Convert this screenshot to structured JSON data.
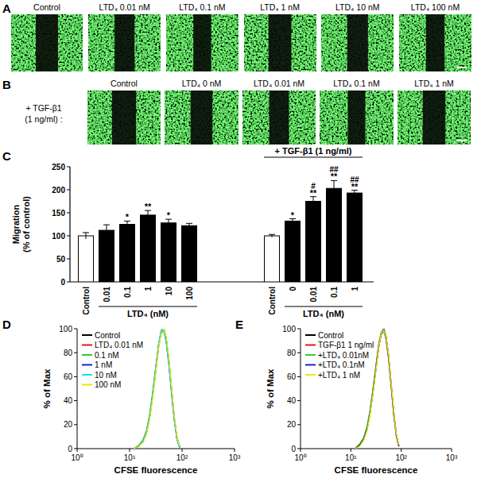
{
  "panel_labels": [
    "A",
    "B",
    "C",
    "D",
    "E"
  ],
  "image_rows": [
    {
      "titles": [
        "Control",
        "LTD₄ 0.01 nM",
        "LTD₄ 0.1 nM",
        "LTD₄ 1 nM",
        "LTD₄ 10 nM",
        "LTD₄ 100 nM"
      ]
    },
    {
      "side_label": [
        "+ TGF-β1",
        "(1 ng/ml) :"
      ],
      "titles": [
        "Control",
        "LTD₄ 0 nM",
        "LTD₄ 0.01 nM",
        "LTD₄ 0.1 nM",
        "LTD₄ 1 nM"
      ]
    }
  ],
  "chart_data": [
    {
      "type": "bar",
      "categories": [
        "Control",
        "0.01",
        "0.1",
        "1",
        "10",
        "100",
        "Control",
        "0",
        "0.01",
        "0.1",
        "1"
      ],
      "values": [
        100,
        112,
        125,
        145,
        128,
        122,
        100,
        132,
        175,
        203,
        193
      ],
      "errors": [
        7,
        12,
        7,
        10,
        8,
        5,
        3,
        5,
        10,
        17,
        6
      ],
      "colors": [
        "#ffffff",
        "#000000",
        "#000000",
        "#000000",
        "#000000",
        "#000000",
        "#ffffff",
        "#000000",
        "#000000",
        "#000000",
        "#000000"
      ],
      "significance": [
        null,
        null,
        "*",
        "**",
        "*",
        null,
        null,
        "*",
        "**",
        "**",
        "**"
      ],
      "significance_2": [
        null,
        null,
        null,
        null,
        null,
        null,
        null,
        null,
        "#",
        "##",
        "##"
      ],
      "ylabel": [
        "Migration",
        "(% of control)"
      ],
      "group_labels": [
        "LTD₄ (nM)",
        "LTD₄ (nM)"
      ],
      "treatment_label": "+ TGF-β1 (1 ng/ml)",
      "ylim": [
        0,
        250
      ],
      "yticks": [
        0,
        50,
        100,
        150,
        200,
        250
      ]
    },
    {
      "type": "line",
      "log": "x",
      "legend": "top-left",
      "xlabel": "CFSE fluorescence",
      "ylabel": "% of Max",
      "xlim": [
        1,
        1000
      ],
      "xticks": [
        {
          "value": 1,
          "label": "10⁰"
        },
        {
          "value": 10,
          "label": "10¹"
        },
        {
          "value": 100,
          "label": "10²"
        },
        {
          "value": 1000,
          "label": "10³"
        }
      ],
      "ylim": [
        0,
        100
      ],
      "yticks": [
        0,
        20,
        40,
        60,
        80,
        100
      ],
      "x": [
        12,
        15,
        18,
        21,
        24,
        27,
        30,
        33,
        36,
        40,
        45,
        50,
        56,
        63,
        71,
        80,
        90
      ],
      "series": [
        {
          "name": "Control",
          "color": "#000000",
          "values": [
            0,
            2,
            6,
            14,
            26,
            42,
            58,
            73,
            87,
            97,
            99,
            90,
            72,
            48,
            25,
            8,
            1
          ]
        },
        {
          "name": "LTD₄ 0.01 nM",
          "color": "#e8141b",
          "values": [
            0,
            2,
            7,
            15,
            27,
            43,
            60,
            75,
            88,
            98,
            100,
            89,
            70,
            46,
            24,
            8,
            1
          ]
        },
        {
          "name": "0.1 nM",
          "color": "#33cc33",
          "values": [
            0,
            3,
            7,
            15,
            28,
            44,
            60,
            74,
            88,
            96,
            98,
            91,
            73,
            49,
            26,
            9,
            1
          ]
        },
        {
          "name": "1 nM",
          "color": "#2020c0",
          "values": [
            0,
            2,
            6,
            13,
            25,
            41,
            57,
            72,
            86,
            97,
            100,
            92,
            74,
            50,
            26,
            9,
            2
          ]
        },
        {
          "name": "10 nM",
          "color": "#00e5ff",
          "values": [
            0,
            2,
            6,
            14,
            26,
            42,
            59,
            74,
            88,
            99,
            98,
            88,
            70,
            47,
            24,
            8,
            1
          ]
        },
        {
          "name": "100 nM",
          "color": "#e8e800",
          "values": [
            0,
            2,
            5,
            12,
            24,
            39,
            55,
            71,
            85,
            96,
            100,
            93,
            76,
            52,
            28,
            10,
            2
          ]
        }
      ]
    },
    {
      "type": "line",
      "log": "x",
      "legend": "top-left",
      "xlabel": "CFSE fluorescence",
      "ylabel": "% of Max",
      "xlim": [
        1,
        1000
      ],
      "xticks": [
        {
          "value": 1,
          "label": "10⁰"
        },
        {
          "value": 10,
          "label": "10¹"
        },
        {
          "value": 100,
          "label": "10²"
        },
        {
          "value": 1000,
          "label": "10³"
        }
      ],
      "ylim": [
        0,
        100
      ],
      "yticks": [
        0,
        20,
        40,
        60,
        80,
        100
      ],
      "x": [
        12,
        15,
        18,
        21,
        24,
        27,
        30,
        33,
        36,
        40,
        45,
        50,
        56,
        63,
        71,
        80,
        90
      ],
      "series": [
        {
          "name": "Control",
          "color": "#000000",
          "values": [
            0,
            3,
            8,
            17,
            30,
            45,
            60,
            74,
            86,
            96,
            100,
            93,
            77,
            54,
            30,
            11,
            2
          ]
        },
        {
          "name": "TGF-β1 1 ng/ml",
          "color": "#e8141b",
          "values": [
            0,
            3,
            9,
            18,
            31,
            47,
            62,
            76,
            88,
            97,
            99,
            91,
            75,
            52,
            28,
            10,
            2
          ]
        },
        {
          "name": "+LTD₄ 0.01nM",
          "color": "#33cc33",
          "values": [
            0,
            4,
            9,
            19,
            32,
            47,
            62,
            75,
            87,
            95,
            98,
            92,
            76,
            53,
            29,
            11,
            2
          ]
        },
        {
          "name": "+LTD₄ 0.1nM",
          "color": "#2020c0",
          "values": [
            0,
            3,
            8,
            16,
            29,
            44,
            59,
            73,
            85,
            95,
            100,
            94,
            78,
            55,
            31,
            12,
            2
          ]
        },
        {
          "name": "+LTD₄ 1 nM",
          "color": "#e8e800",
          "values": [
            0,
            2,
            7,
            15,
            28,
            43,
            58,
            72,
            85,
            96,
            99,
            94,
            79,
            56,
            32,
            12,
            3
          ]
        }
      ]
    }
  ]
}
